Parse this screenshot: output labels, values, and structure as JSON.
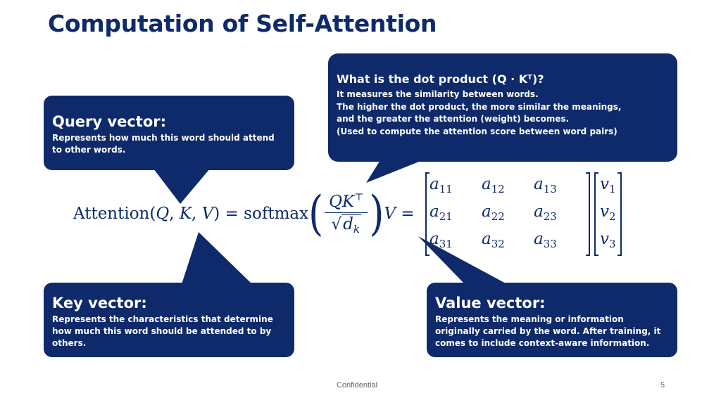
{
  "title": "Computation of Self-Attention",
  "colors": {
    "callout": "#0e2a6b",
    "text": "#ffffff"
  },
  "callouts": {
    "query": {
      "heading": "Query vector:",
      "lines": [
        "Represents how much this word should attend",
        "to other words."
      ]
    },
    "dot": {
      "heading": "What is the dot product (Q · Kᵀ)?",
      "lines": [
        "It measures the similarity between words.",
        "The higher the dot product, the more similar the meanings,",
        "and the greater the attention (weight) becomes.",
        "(Used to compute the attention score between word pairs)"
      ]
    },
    "key": {
      "heading": "Key vector:",
      "lines": [
        "Represents the characteristics that determine",
        "how much this word should be attended to by",
        "others."
      ]
    },
    "value": {
      "heading": "Value vector:",
      "lines": [
        "Represents the meaning or information",
        "originally carried by the word. After training, it",
        "comes to include context-aware information."
      ]
    }
  },
  "formula": {
    "lhs_name": "Attention",
    "args": [
      "Q",
      "K",
      "V"
    ],
    "softmax": "softmax",
    "numerator": "QK",
    "transpose": "⊤",
    "denominator_base": "d",
    "denominator_sub": "k",
    "value_symbol": "V",
    "matrix_rows": [
      [
        {
          "base": "a",
          "sub": "11"
        },
        {
          "base": "a",
          "sub": "12"
        },
        {
          "base": "a",
          "sub": "13"
        }
      ],
      [
        {
          "base": "a",
          "sub": "21"
        },
        {
          "base": "a",
          "sub": "22"
        },
        {
          "base": "a",
          "sub": "23"
        }
      ],
      [
        {
          "base": "a",
          "sub": "31"
        },
        {
          "base": "a",
          "sub": "32"
        },
        {
          "base": "a",
          "sub": "33"
        }
      ]
    ],
    "vector": [
      {
        "base": "v",
        "sub": "1"
      },
      {
        "base": "v",
        "sub": "2"
      },
      {
        "base": "v",
        "sub": "3"
      }
    ]
  },
  "footer": {
    "label": "Confidential",
    "page": "5"
  }
}
